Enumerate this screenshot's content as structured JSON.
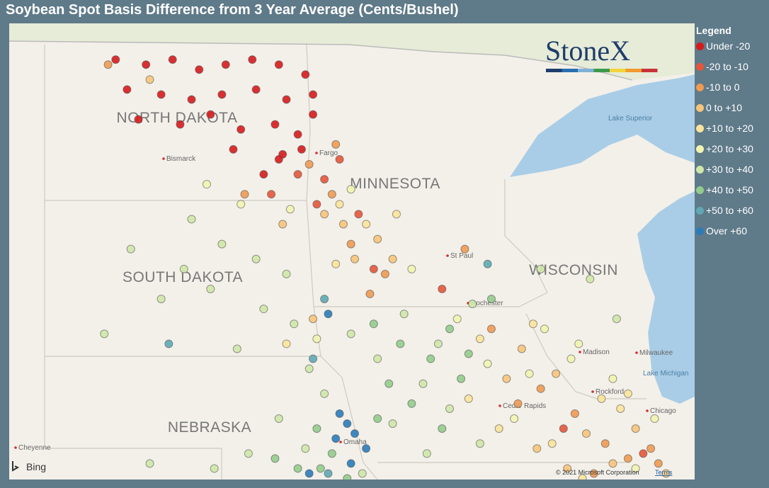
{
  "title": "Soybean Spot Basis Difference from 3 Year Average (Cents/Bushel)",
  "legend": {
    "title": "Legend",
    "bins": [
      {
        "label": "Under -20",
        "color": "#d7191c"
      },
      {
        "label": "-20 to -10",
        "color": "#e6553a"
      },
      {
        "label": "-10 to 0",
        "color": "#f09a52"
      },
      {
        "label": "0 to +10",
        "color": "#f6c47a"
      },
      {
        "label": "+10 to +20",
        "color": "#fbe39a"
      },
      {
        "label": "+20 to +30",
        "color": "#f2f4b0"
      },
      {
        "label": "+30 to +40",
        "color": "#cfe7a8"
      },
      {
        "label": "+40 to +50",
        "color": "#93cc8c"
      },
      {
        "label": "+50 to +60",
        "color": "#5fa8b4"
      },
      {
        "label": "Over +60",
        "color": "#2b7bba"
      }
    ]
  },
  "map": {
    "states": [
      "NORTH DAKOTA",
      "SOUTH DAKOTA",
      "MINNESOTA",
      "WISCONSIN",
      "NEBRASKA"
    ],
    "cities": [
      "Bismarck",
      "Fargo",
      "St Paul",
      "Rochester",
      "Madison",
      "Milwaukee",
      "Cedar Rapids",
      "Rockford",
      "Chicago",
      "Omaha",
      "Cheyenne"
    ],
    "lakes": [
      "Lake Superior",
      "Lake Michigan"
    ],
    "points": [
      [
        -102.1,
        48.9,
        0
      ],
      [
        -101.3,
        48.8,
        0
      ],
      [
        -100.6,
        48.9,
        0
      ],
      [
        -99.9,
        48.7,
        0
      ],
      [
        -99.2,
        48.8,
        0
      ],
      [
        -98.5,
        48.9,
        0
      ],
      [
        -97.8,
        48.8,
        0
      ],
      [
        -97.1,
        48.6,
        0
      ],
      [
        -101.8,
        48.3,
        0
      ],
      [
        -100.9,
        48.2,
        0
      ],
      [
        -100.1,
        48.1,
        0
      ],
      [
        -99.3,
        48.2,
        0
      ],
      [
        -98.4,
        48.3,
        0
      ],
      [
        -97.6,
        48.1,
        0
      ],
      [
        -96.9,
        48.2,
        0
      ],
      [
        -101.5,
        47.7,
        0
      ],
      [
        -100.4,
        47.6,
        0
      ],
      [
        -99.6,
        47.8,
        0
      ],
      [
        -98.8,
        47.5,
        0
      ],
      [
        -97.9,
        47.6,
        0
      ],
      [
        -97.3,
        47.4,
        0
      ],
      [
        -96.9,
        47.8,
        0
      ],
      [
        -99.0,
        47.1,
        0
      ],
      [
        -97.7,
        47.0,
        0
      ],
      [
        -97.2,
        47.1,
        0
      ],
      [
        -98.2,
        46.6,
        0
      ],
      [
        -97.8,
        46.9,
        0
      ],
      [
        -98.0,
        46.2,
        1
      ],
      [
        -97.3,
        46.6,
        1
      ],
      [
        -96.6,
        46.5,
        1
      ],
      [
        -96.2,
        46.9,
        1
      ],
      [
        -96.8,
        46.0,
        1
      ],
      [
        -95.7,
        45.8,
        1
      ],
      [
        -95.3,
        44.7,
        1
      ],
      [
        -93.5,
        44.3,
        1
      ],
      [
        -90.3,
        41.5,
        1
      ],
      [
        -88.2,
        41.0,
        1
      ],
      [
        -102.3,
        48.8,
        2
      ],
      [
        -98.7,
        46.2,
        2
      ],
      [
        -97.0,
        46.8,
        2
      ],
      [
        -96.4,
        46.2,
        2
      ],
      [
        -96.3,
        47.2,
        2
      ],
      [
        -95.9,
        45.2,
        2
      ],
      [
        -95.4,
        44.2,
        2
      ],
      [
        -95.0,
        44.6,
        2
      ],
      [
        -92.2,
        43.5,
        2
      ],
      [
        -91.5,
        42.0,
        2
      ],
      [
        -90.9,
        42.3,
        2
      ],
      [
        -90.0,
        41.8,
        2
      ],
      [
        -89.2,
        41.2,
        2
      ],
      [
        -88.6,
        40.9,
        2
      ],
      [
        -88.0,
        41.1,
        2
      ],
      [
        -87.8,
        40.8,
        2
      ],
      [
        -89.5,
        40.6,
        2
      ],
      [
        -92.9,
        45.1,
        2
      ],
      [
        -101.2,
        48.5,
        3
      ],
      [
        -96.6,
        45.8,
        3
      ],
      [
        -95.8,
        44.9,
        3
      ],
      [
        -96.1,
        45.6,
        3
      ],
      [
        -95.2,
        45.3,
        3
      ],
      [
        -94.8,
        44.9,
        3
      ],
      [
        -91.8,
        42.5,
        3
      ],
      [
        -91.4,
        43.1,
        3
      ],
      [
        -90.5,
        42.6,
        3
      ],
      [
        -89.7,
        41.4,
        3
      ],
      [
        -89.0,
        40.8,
        3
      ],
      [
        -88.4,
        41.5,
        3
      ],
      [
        -87.6,
        40.6,
        3
      ],
      [
        -90.2,
        40.7,
        3
      ],
      [
        -91.0,
        41.1,
        3
      ],
      [
        -96.9,
        43.7,
        3
      ],
      [
        -97.7,
        45.6,
        3
      ],
      [
        -96.2,
        46.0,
        4
      ],
      [
        -95.5,
        45.6,
        4
      ],
      [
        -94.7,
        45.8,
        4
      ],
      [
        -96.3,
        44.8,
        4
      ],
      [
        -92.5,
        43.3,
        4
      ],
      [
        -91.1,
        43.6,
        4
      ],
      [
        -90.6,
        41.2,
        4
      ],
      [
        -89.3,
        42.1,
        4
      ],
      [
        -88.8,
        41.9,
        4
      ],
      [
        -92.8,
        42.1,
        4
      ],
      [
        -97.6,
        43.2,
        4
      ],
      [
        -92.0,
        41.5,
        4
      ],
      [
        -89.8,
        40.5,
        4
      ],
      [
        -88.6,
        42.2,
        4
      ],
      [
        -97.5,
        45.9,
        5
      ],
      [
        -98.8,
        46.0,
        5
      ],
      [
        -95.9,
        46.3,
        5
      ],
      [
        -94.3,
        44.7,
        5
      ],
      [
        -93.1,
        43.7,
        5
      ],
      [
        -92.3,
        42.8,
        5
      ],
      [
        -91.2,
        42.6,
        5
      ],
      [
        -90.8,
        43.5,
        5
      ],
      [
        -89.9,
        43.2,
        5
      ],
      [
        -89.0,
        42.5,
        5
      ],
      [
        -88.4,
        40.7,
        5
      ],
      [
        -87.9,
        41.7,
        5
      ],
      [
        -99.7,
        46.4,
        5
      ],
      [
        -96.8,
        43.3,
        5
      ],
      [
        -91.6,
        41.7,
        5
      ],
      [
        -90.1,
        42.9,
        5
      ],
      [
        -100.1,
        45.7,
        6
      ],
      [
        -99.3,
        45.2,
        6
      ],
      [
        -98.4,
        44.9,
        6
      ],
      [
        -97.6,
        44.6,
        6
      ],
      [
        -100.9,
        44.1,
        6
      ],
      [
        -99.6,
        44.3,
        6
      ],
      [
        -98.2,
        43.9,
        6
      ],
      [
        -97.4,
        43.6,
        6
      ],
      [
        -102.4,
        43.4,
        6
      ],
      [
        -98.9,
        43.1,
        6
      ],
      [
        -97.0,
        42.7,
        6
      ],
      [
        -95.9,
        43.4,
        6
      ],
      [
        -95.2,
        42.9,
        6
      ],
      [
        -94.5,
        43.8,
        6
      ],
      [
        -93.6,
        43.2,
        6
      ],
      [
        -94.0,
        42.4,
        6
      ],
      [
        -93.3,
        41.9,
        6
      ],
      [
        -92.5,
        41.2,
        6
      ],
      [
        -94.8,
        41.6,
        6
      ],
      [
        -93.9,
        41.0,
        6
      ],
      [
        -97.8,
        41.7,
        6
      ],
      [
        -98.6,
        41.0,
        6
      ],
      [
        -101.2,
        40.8,
        6
      ],
      [
        -99.5,
        40.7,
        6
      ],
      [
        -96.6,
        42.2,
        6
      ],
      [
        -89.6,
        44.5,
        6
      ],
      [
        -88.9,
        43.7,
        6
      ],
      [
        -90.9,
        44.7,
        6
      ],
      [
        -92.7,
        44.0,
        6
      ],
      [
        -101.7,
        45.1,
        6
      ],
      [
        -100.3,
        44.7,
        6
      ],
      [
        -97.1,
        41.1,
        6
      ],
      [
        -95.6,
        40.6,
        6
      ],
      [
        -95.3,
        43.6,
        7
      ],
      [
        -94.6,
        43.2,
        7
      ],
      [
        -93.8,
        42.9,
        7
      ],
      [
        -93.0,
        42.5,
        7
      ],
      [
        -94.3,
        42.0,
        7
      ],
      [
        -95.2,
        41.7,
        7
      ],
      [
        -96.8,
        41.5,
        7
      ],
      [
        -96.4,
        41.0,
        7
      ],
      [
        -97.3,
        40.7,
        7
      ],
      [
        -93.5,
        41.5,
        7
      ],
      [
        -92.8,
        43.0,
        7
      ],
      [
        -94.9,
        42.4,
        7
      ],
      [
        -96.7,
        40.7,
        7
      ],
      [
        -96.0,
        40.5,
        7
      ],
      [
        -97.9,
        40.9,
        7
      ],
      [
        -93.3,
        43.5,
        7
      ],
      [
        -92.2,
        44.1,
        7
      ],
      [
        -96.6,
        44.1,
        8
      ],
      [
        -100.7,
        43.2,
        8
      ],
      [
        -92.3,
        44.8,
        8
      ],
      [
        -96.5,
        40.6,
        8
      ],
      [
        -96.9,
        42.9,
        8
      ],
      [
        -96.2,
        41.8,
        9
      ],
      [
        -96.0,
        41.6,
        9
      ],
      [
        -95.8,
        41.4,
        9
      ],
      [
        -96.3,
        41.3,
        9
      ],
      [
        -95.5,
        41.1,
        9
      ],
      [
        -96.5,
        43.8,
        9
      ],
      [
        -97.0,
        40.6,
        9
      ],
      [
        -95.9,
        40.8,
        9
      ]
    ]
  },
  "brand": {
    "logo": "StoneX",
    "provider": "Bing",
    "copyright": "© 2021 Microsoft Corporation",
    "terms": "Terms"
  }
}
